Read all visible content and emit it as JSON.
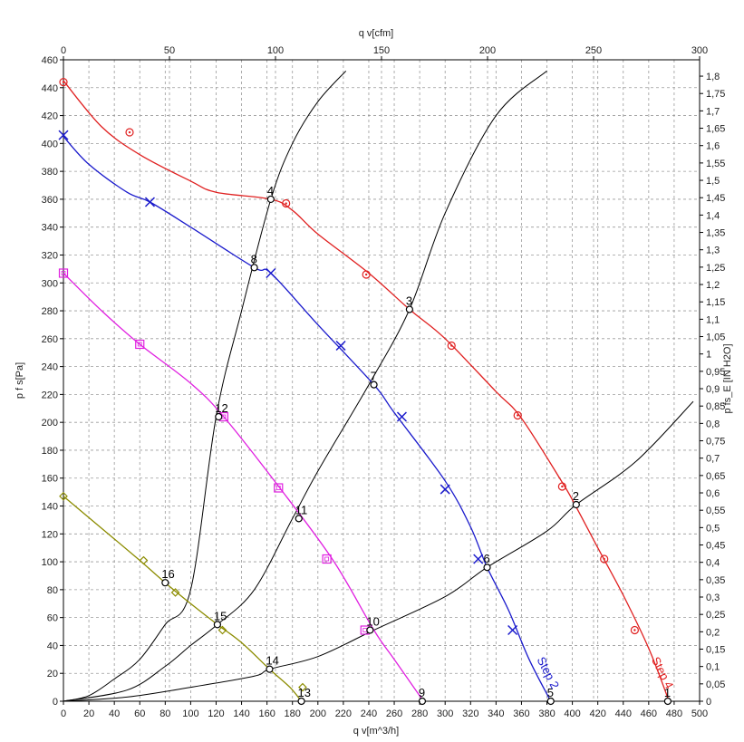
{
  "chart_data": {
    "type": "line",
    "title": "",
    "xlabel": "q v[m^3/h]",
    "x2label": "q v[cfm]",
    "ylabel": "p f s[Pa]",
    "y2label": "p fs_E [IN H2O]",
    "xlim": [
      0,
      500
    ],
    "ylim": [
      0,
      460
    ],
    "x2lim": [
      0,
      300
    ],
    "y2lim": [
      0,
      1.8471
    ],
    "grid": true,
    "x_ticks": [
      "0",
      "20",
      "40",
      "60",
      "80",
      "100",
      "120",
      "140",
      "160",
      "180",
      "200",
      "220",
      "240",
      "260",
      "280",
      "300",
      "320",
      "340",
      "360",
      "380",
      "400",
      "420",
      "440",
      "460",
      "480",
      "500"
    ],
    "y_ticks": [
      "0",
      "20",
      "40",
      "60",
      "80",
      "100",
      "120",
      "140",
      "160",
      "180",
      "200",
      "220",
      "240",
      "260",
      "280",
      "300",
      "320",
      "340",
      "360",
      "380",
      "400",
      "420",
      "440",
      "460"
    ],
    "x2_ticks": [
      "0",
      "50",
      "100",
      "150",
      "200",
      "250",
      "300"
    ],
    "y2_ticks": [
      "0",
      "0,05",
      "0,1",
      "0,15",
      "0,2",
      "0,25",
      "0,3",
      "0,35",
      "0,4",
      "0,45",
      "0,5",
      "0,55",
      "0,6",
      "0,65",
      "0,7",
      "0,75",
      "0,8",
      "0,85",
      "0,9",
      "0,95",
      "1",
      "1,05",
      "1,1",
      "1,15",
      "1,2",
      "1,25",
      "1,3",
      "1,35",
      "1,4",
      "1,45",
      "1,5",
      "1,55",
      "1,6",
      "1,65",
      "1,7",
      "1,75",
      "1,8"
    ],
    "series": [
      {
        "name": "Step 4",
        "color": "#e02020",
        "marker": "circle",
        "x": [
          0,
          30,
          60,
          100,
          120,
          163,
          180,
          200,
          240,
          272,
          300,
          340,
          360,
          392,
          402,
          420,
          440,
          460,
          476
        ],
        "y": [
          445,
          412,
          392,
          373,
          365,
          360,
          352,
          335,
          307,
          281,
          260,
          222,
          203,
          157,
          141,
          110,
          76,
          38,
          0
        ],
        "marker_x": [
          0,
          52,
          175,
          238,
          305,
          357,
          392,
          425,
          449
        ],
        "marker_y": [
          444,
          408,
          357,
          306,
          255,
          205,
          154,
          102,
          51
        ]
      },
      {
        "name": "Step 2",
        "color": "#1a1acc",
        "marker": "x",
        "x": [
          0,
          20,
          50,
          68,
          100,
          150,
          163,
          200,
          244,
          260,
          300,
          320,
          333,
          350,
          366,
          383
        ],
        "y": [
          405,
          385,
          365,
          358,
          340,
          311,
          307,
          270,
          227,
          207,
          158,
          125,
          96,
          65,
          30,
          0
        ],
        "marker_x": [
          0,
          68,
          163,
          218,
          266,
          300,
          326,
          353
        ],
        "marker_y": [
          406,
          358,
          307,
          255,
          204,
          152,
          102,
          51
        ]
      },
      {
        "name": "",
        "color": "#e020e0",
        "marker": "square",
        "x": [
          0,
          30,
          60,
          100,
          126,
          170,
          212,
          244,
          260,
          283
        ],
        "y": [
          307,
          280,
          256,
          228,
          204,
          153,
          101,
          51,
          30,
          0
        ],
        "marker_x": [
          0,
          60,
          126,
          169,
          207,
          237
        ],
        "marker_y": [
          307,
          256,
          204,
          153,
          102,
          51
        ]
      },
      {
        "name": "",
        "color": "#8c8c00",
        "marker": "diamond",
        "x": [
          0,
          30,
          60,
          80,
          100,
          121,
          140,
          162,
          178,
          187
        ],
        "y": [
          147,
          124,
          101,
          85,
          70,
          55,
          42,
          23,
          10,
          0
        ],
        "marker_x": [
          0,
          63,
          88,
          125,
          188
        ],
        "marker_y": [
          147,
          101,
          78,
          51,
          10
        ]
      }
    ],
    "system_curves": [
      {
        "x": [
          0,
          20,
          40,
          60,
          80,
          100,
          120,
          140,
          163,
          180,
          200,
          222
        ],
        "y": [
          0,
          4,
          16,
          30,
          55,
          80,
          204,
          280,
          360,
          400,
          430,
          452
        ]
      },
      {
        "x": [
          0,
          50,
          80,
          100,
          121,
          150,
          180,
          200,
          240,
          272,
          300,
          340,
          380
        ],
        "y": [
          0,
          8,
          25,
          40,
          55,
          80,
          131,
          165,
          227,
          281,
          350,
          420,
          452
        ]
      },
      {
        "x": [
          0,
          50,
          100,
          150,
          162,
          200,
          244,
          300,
          333,
          380,
          403,
          450,
          495
        ],
        "y": [
          0,
          3,
          10,
          18,
          23,
          32,
          51,
          75,
          96,
          122,
          141,
          172,
          215
        ]
      }
    ],
    "point_labels": [
      {
        "label": "1",
        "x": 475,
        "y": 0
      },
      {
        "label": "2",
        "x": 403,
        "y": 141
      },
      {
        "label": "3",
        "x": 272,
        "y": 281
      },
      {
        "label": "4",
        "x": 163,
        "y": 360
      },
      {
        "label": "5",
        "x": 383,
        "y": 0
      },
      {
        "label": "6",
        "x": 333,
        "y": 96
      },
      {
        "label": "7",
        "x": 244,
        "y": 227
      },
      {
        "label": "8",
        "x": 150,
        "y": 311
      },
      {
        "label": "9",
        "x": 282,
        "y": 0
      },
      {
        "label": "10",
        "x": 241,
        "y": 51
      },
      {
        "label": "11",
        "x": 185,
        "y": 131
      },
      {
        "label": "12",
        "x": 122,
        "y": 204
      },
      {
        "label": "13",
        "x": 187,
        "y": 0
      },
      {
        "label": "14",
        "x": 162,
        "y": 23
      },
      {
        "label": "15",
        "x": 121,
        "y": 55
      },
      {
        "label": "16",
        "x": 80,
        "y": 85
      }
    ],
    "annotations": [
      "Step 2",
      "Step 4"
    ]
  }
}
